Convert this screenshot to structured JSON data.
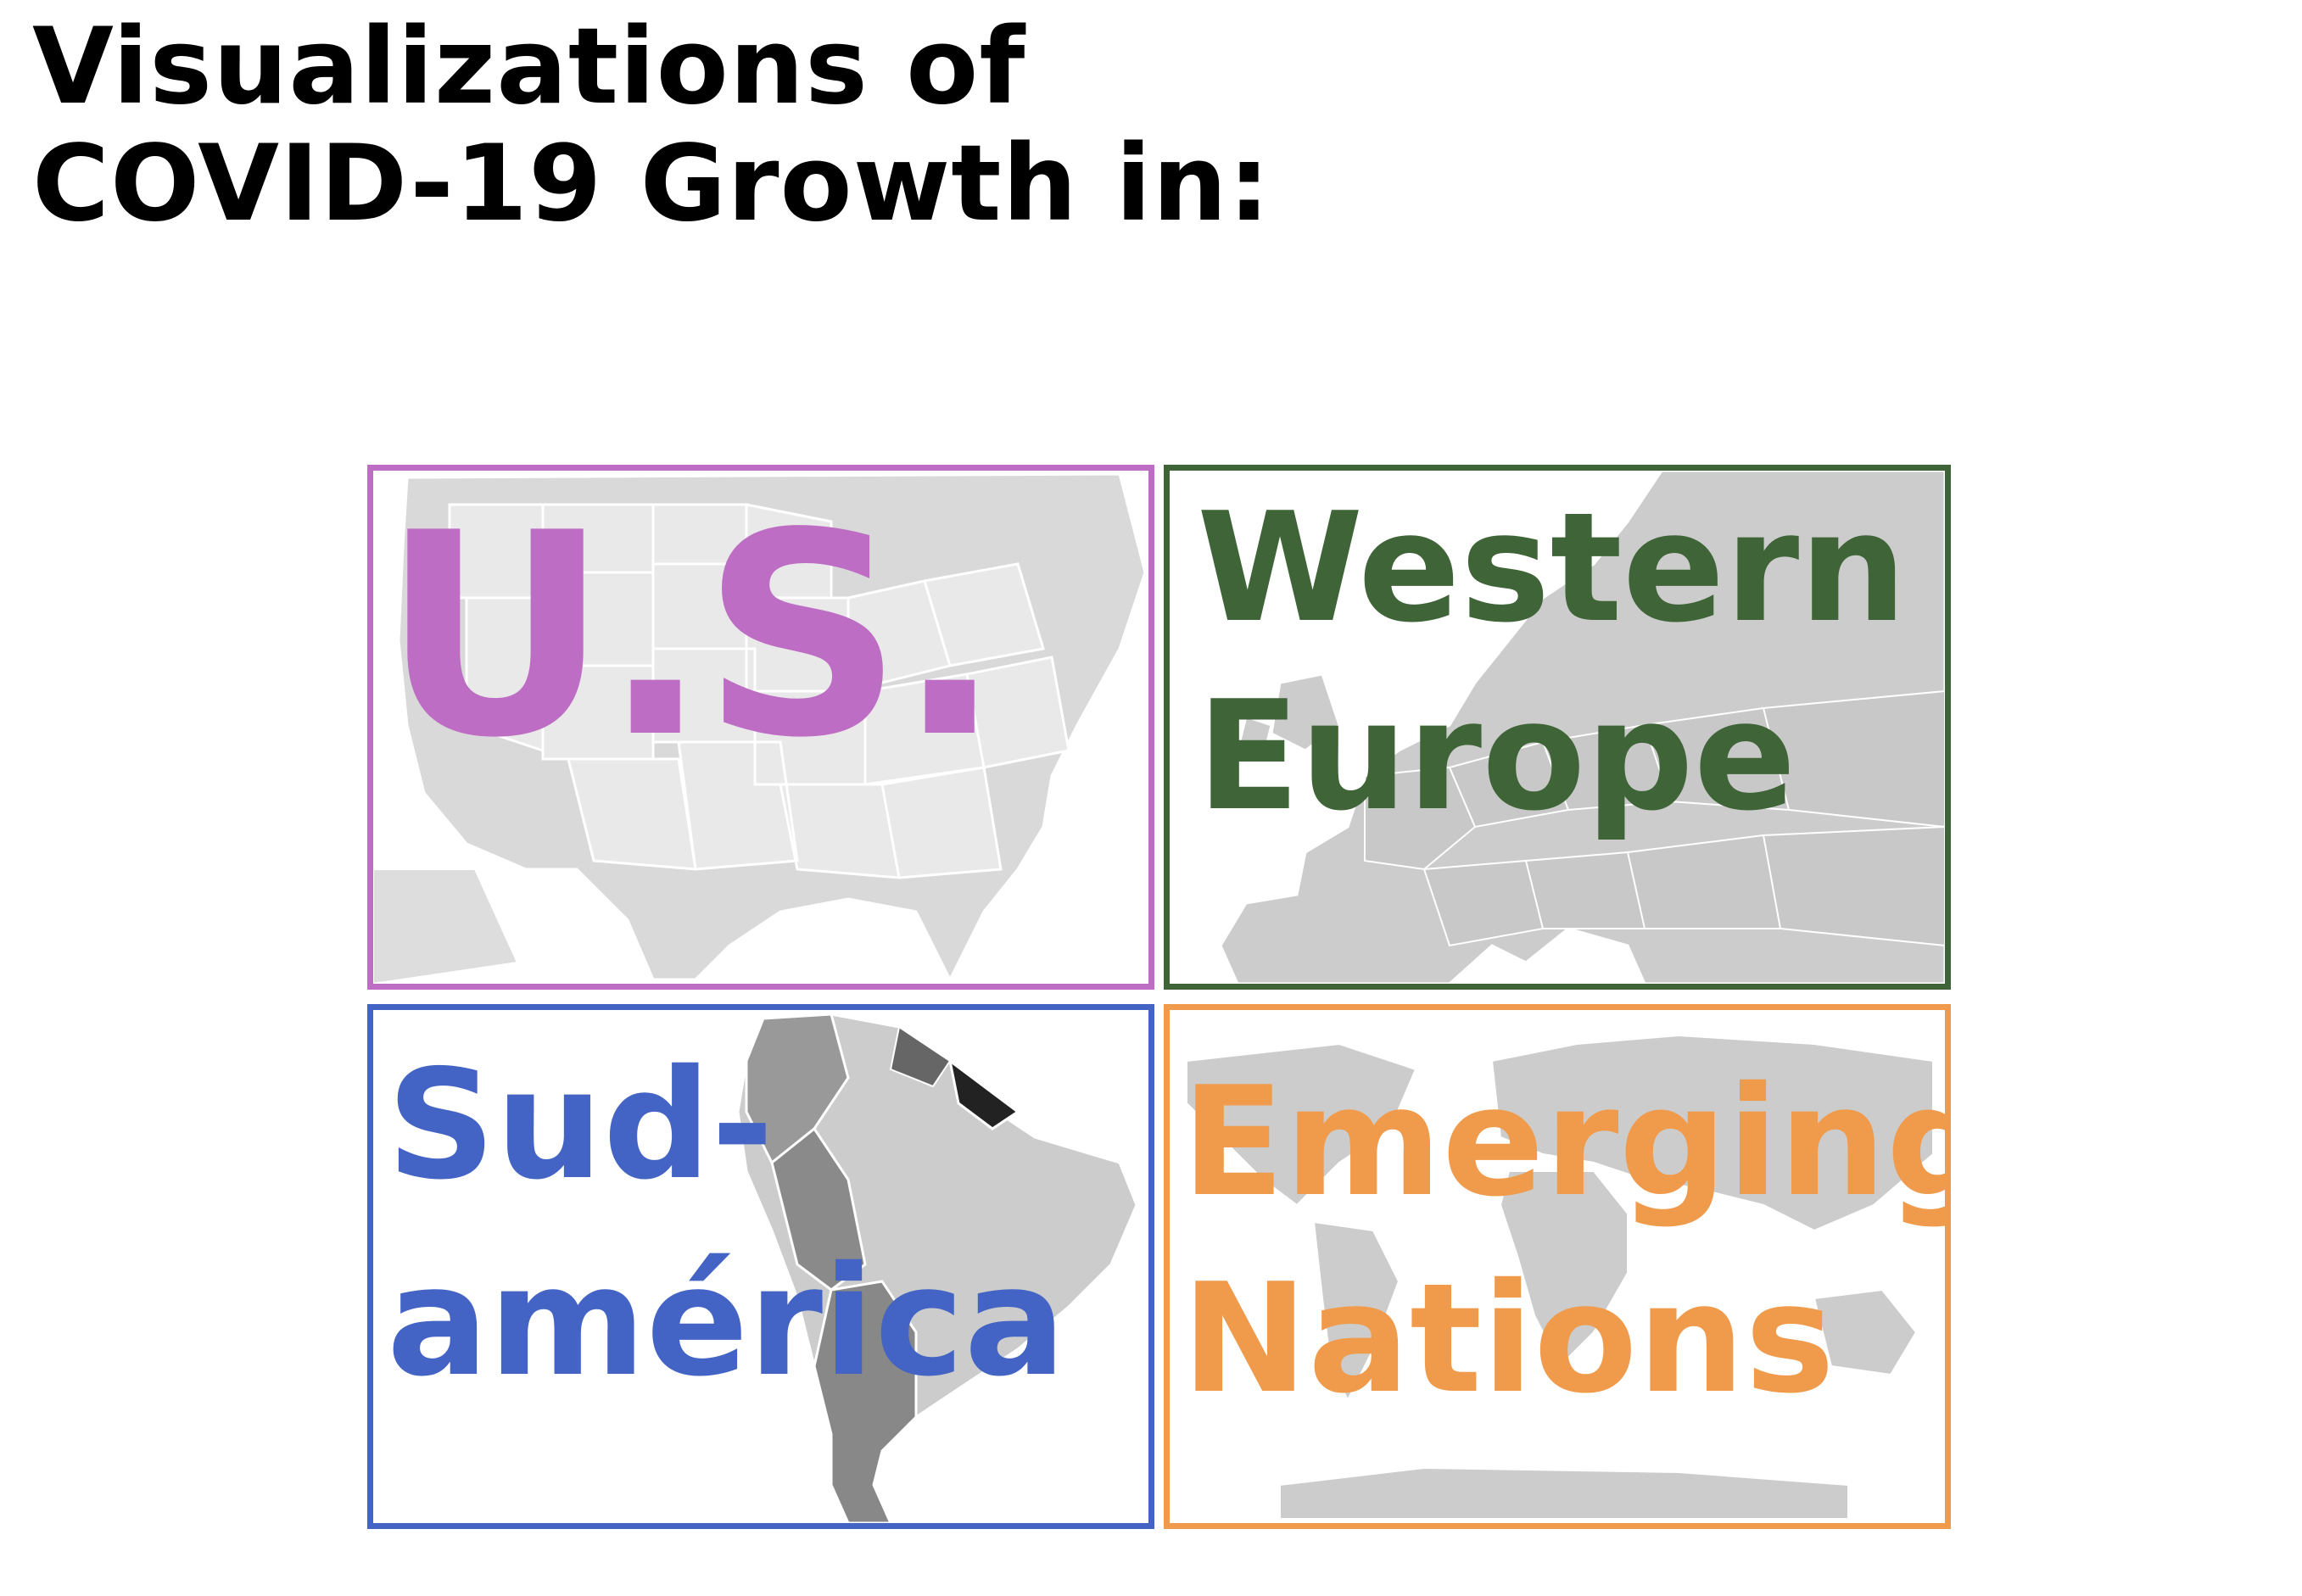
{
  "title": {
    "line1": "Visualizations of",
    "line2": "COVID-19 Growth in:"
  },
  "panels": [
    {
      "id": "us",
      "lines": [
        "U.S."
      ],
      "color": "#be6dc4",
      "map_icon": "usa-map-icon"
    },
    {
      "id": "eu",
      "lines": [
        "Western",
        "Europe"
      ],
      "color": "#3e6437",
      "map_icon": "europe-map-icon"
    },
    {
      "id": "sa",
      "lines": [
        "Sud-",
        "américa"
      ],
      "color": "#4364c4",
      "map_icon": "south-america-map-icon"
    },
    {
      "id": "em",
      "lines": [
        "Emerging",
        "Nations"
      ],
      "color": "#f09b4c",
      "map_icon": "world-map-icon"
    }
  ],
  "map_colors": {
    "land": "#cccccc",
    "land_light": "#e6e6e6",
    "land_dark": "#888888",
    "land_darkest": "#222222",
    "border": "#ffffff"
  }
}
